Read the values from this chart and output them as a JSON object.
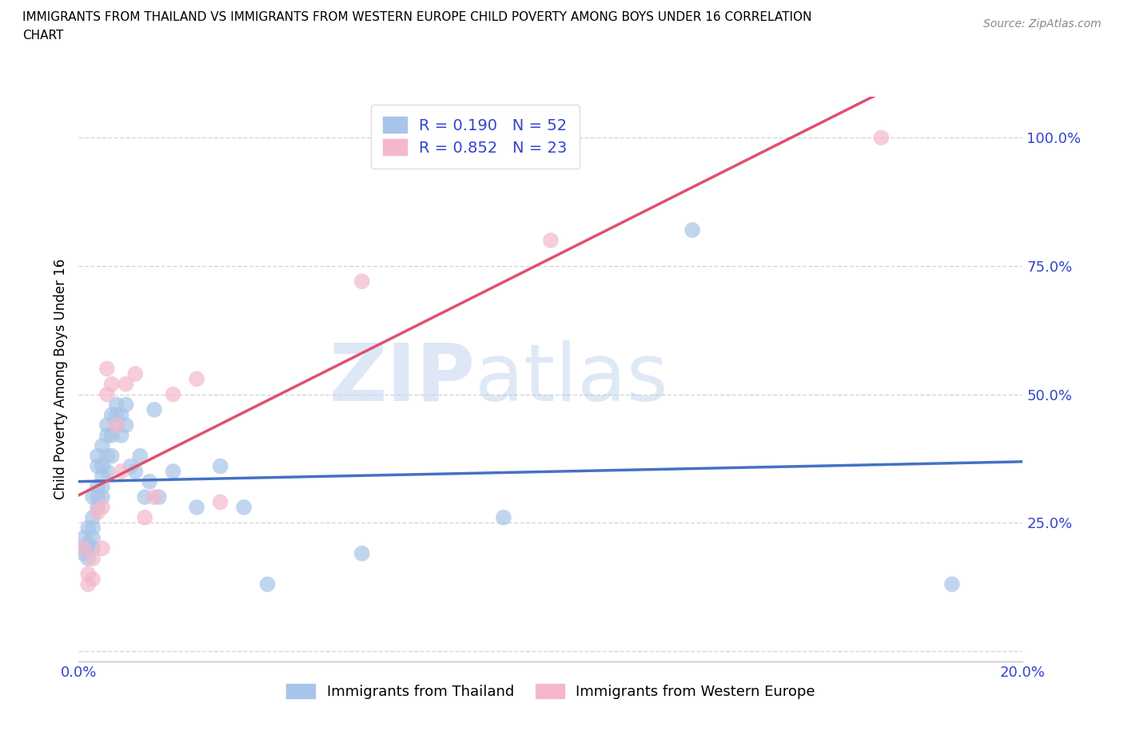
{
  "title_line1": "IMMIGRANTS FROM THAILAND VS IMMIGRANTS FROM WESTERN EUROPE CHILD POVERTY AMONG BOYS UNDER 16 CORRELATION",
  "title_line2": "CHART",
  "source": "Source: ZipAtlas.com",
  "ylabel": "Child Poverty Among Boys Under 16",
  "x_min": 0.0,
  "x_max": 0.2,
  "y_min": -0.02,
  "y_max": 1.08,
  "x_ticks": [
    0.0,
    0.04,
    0.08,
    0.12,
    0.16,
    0.2
  ],
  "x_tick_labels": [
    "0.0%",
    "",
    "",
    "",
    "",
    "20.0%"
  ],
  "y_ticks": [
    0.0,
    0.25,
    0.5,
    0.75,
    1.0
  ],
  "y_tick_labels": [
    "",
    "25.0%",
    "50.0%",
    "75.0%",
    "100.0%"
  ],
  "thailand_color": "#a8c4e8",
  "western_europe_color": "#f5b8cb",
  "thailand_line_color": "#4472c4",
  "western_europe_line_color": "#e05070",
  "R_thailand": 0.19,
  "N_thailand": 52,
  "R_western_europe": 0.852,
  "N_western_europe": 23,
  "watermark_zip": "ZIP",
  "watermark_atlas": "atlas",
  "legend_label_thailand": "Immigrants from Thailand",
  "legend_label_western_europe": "Immigrants from Western Europe",
  "thailand_x": [
    0.001,
    0.001,
    0.001,
    0.002,
    0.002,
    0.002,
    0.002,
    0.003,
    0.003,
    0.003,
    0.003,
    0.003,
    0.004,
    0.004,
    0.004,
    0.004,
    0.004,
    0.005,
    0.005,
    0.005,
    0.005,
    0.005,
    0.006,
    0.006,
    0.006,
    0.006,
    0.007,
    0.007,
    0.007,
    0.008,
    0.008,
    0.008,
    0.009,
    0.009,
    0.01,
    0.01,
    0.011,
    0.012,
    0.013,
    0.014,
    0.015,
    0.016,
    0.017,
    0.02,
    0.025,
    0.03,
    0.035,
    0.04,
    0.06,
    0.09,
    0.13,
    0.185
  ],
  "thailand_y": [
    0.2,
    0.22,
    0.19,
    0.21,
    0.18,
    0.2,
    0.24,
    0.22,
    0.2,
    0.24,
    0.26,
    0.3,
    0.28,
    0.3,
    0.32,
    0.36,
    0.38,
    0.3,
    0.32,
    0.34,
    0.36,
    0.4,
    0.35,
    0.38,
    0.42,
    0.44,
    0.38,
    0.42,
    0.46,
    0.44,
    0.46,
    0.48,
    0.42,
    0.46,
    0.44,
    0.48,
    0.36,
    0.35,
    0.38,
    0.3,
    0.33,
    0.47,
    0.3,
    0.35,
    0.28,
    0.36,
    0.28,
    0.13,
    0.19,
    0.26,
    0.82,
    0.13
  ],
  "western_europe_x": [
    0.001,
    0.002,
    0.002,
    0.003,
    0.003,
    0.004,
    0.005,
    0.005,
    0.006,
    0.006,
    0.007,
    0.008,
    0.009,
    0.01,
    0.012,
    0.014,
    0.016,
    0.02,
    0.025,
    0.03,
    0.06,
    0.1,
    0.17
  ],
  "western_europe_y": [
    0.2,
    0.13,
    0.15,
    0.14,
    0.18,
    0.27,
    0.2,
    0.28,
    0.5,
    0.55,
    0.52,
    0.44,
    0.35,
    0.52,
    0.54,
    0.26,
    0.3,
    0.5,
    0.53,
    0.29,
    0.72,
    0.8,
    1.0
  ],
  "thailand_line_y0": 0.27,
  "thailand_line_y1": 0.46,
  "we_line_y0": -0.02,
  "we_line_y1": 1.08
}
